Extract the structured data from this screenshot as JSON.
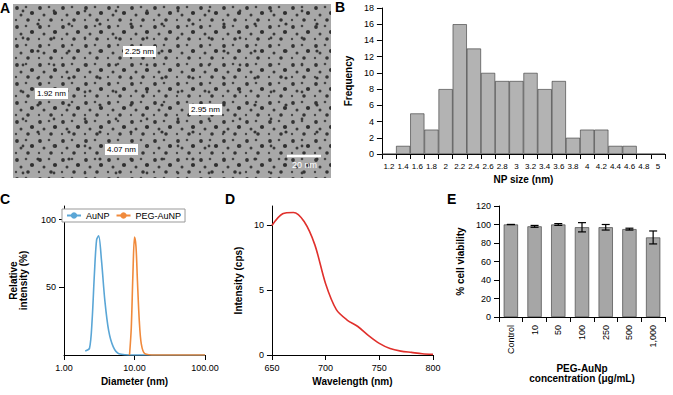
{
  "chart_data": [
    {
      "type": "image",
      "title": "A",
      "annotations": [
        "2.25 nm",
        "1.92 nm",
        "2.95 nm",
        "4.07 nm",
        "20 nm"
      ]
    },
    {
      "type": "bar",
      "title": "B",
      "x_label": "NP size (nm)",
      "y_label": "Frequency",
      "categories": [
        "1.2",
        "1.4",
        "1.6",
        "1.8",
        "2",
        "2.2",
        "2.4",
        "2.6",
        "2.8",
        "3",
        "3.2",
        "3.4",
        "3.6",
        "3.8",
        "4",
        "4.2",
        "4.4",
        "4.6",
        "4.8",
        "5"
      ],
      "values": [
        0,
        1,
        5,
        3,
        8,
        16,
        13,
        10,
        9,
        9,
        10,
        8,
        9,
        2,
        3,
        3,
        1,
        1,
        0,
        0
      ],
      "color": "#b3b3b3",
      "ylim": [
        0,
        18
      ],
      "yticks": [
        0,
        2,
        4,
        6,
        8,
        10,
        12,
        14,
        16,
        18
      ],
      "grid": false
    },
    {
      "type": "line",
      "title": "C",
      "x_label": "Diameter (nm)",
      "y_label": "Relative\nintensity (%)",
      "log": "x",
      "xlim": [
        1,
        100
      ],
      "xticks": [
        {
          "value": 1,
          "label": "1.00"
        },
        {
          "value": 10,
          "label": "10.00"
        },
        {
          "value": 100,
          "label": "100.00"
        }
      ],
      "ylim": [
        0,
        110
      ],
      "yticks": [
        50,
        100
      ],
      "legend": "upper left",
      "grid": false,
      "series": [
        {
          "name": "AuNP",
          "color": "#5aa6d6",
          "x": [
            2.0,
            2.3,
            2.5,
            2.7,
            2.9,
            3.1,
            3.4,
            3.8,
            4.3,
            5,
            6,
            10,
            30,
            100
          ],
          "values": [
            3,
            5,
            25,
            60,
            85,
            88,
            70,
            40,
            18,
            6,
            1,
            0,
            0,
            0
          ]
        },
        {
          "name": "PEG-AuNP",
          "color": "#f08a3c",
          "x": [
            8.5,
            9,
            9.5,
            10,
            10.5,
            11,
            11.7,
            12.5,
            14,
            20,
            100
          ],
          "values": [
            0,
            20,
            60,
            87,
            80,
            55,
            25,
            8,
            1,
            0,
            0
          ]
        }
      ]
    },
    {
      "type": "line",
      "title": "D",
      "x_label": "Wavelength (nm)",
      "y_label": "Intensity (cps)",
      "x": [
        650,
        660,
        670,
        680,
        690,
        700,
        710,
        720,
        730,
        740,
        750,
        760,
        770,
        780,
        790,
        800
      ],
      "values": [
        10,
        10.9,
        11,
        10.3,
        8.5,
        5.5,
        3.5,
        2.7,
        2.2,
        1.5,
        0.9,
        0.5,
        0.3,
        0.2,
        0.1,
        0.05
      ],
      "color": "#e0302c",
      "xlim": [
        650,
        800
      ],
      "xticks": [
        650,
        700,
        750,
        800
      ],
      "ylim": [
        0,
        11.5
      ],
      "yticks": [
        0,
        5,
        10
      ],
      "grid": false
    },
    {
      "type": "bar",
      "title": "E",
      "x_label": "PEG-AuNp\nconcentration (μg/mL)",
      "y_label": "% cell viability",
      "categories": [
        "Control",
        "10",
        "50",
        "100",
        "250",
        "500",
        "1,000"
      ],
      "values": [
        100,
        98,
        100,
        97,
        97,
        95,
        86
      ],
      "errors": [
        0,
        1,
        1,
        5,
        3,
        1,
        7
      ],
      "color": "#a6a6a6",
      "ylim": [
        0,
        120
      ],
      "yticks": [
        0,
        20,
        40,
        60,
        80,
        100,
        120
      ],
      "grid": false
    }
  ]
}
